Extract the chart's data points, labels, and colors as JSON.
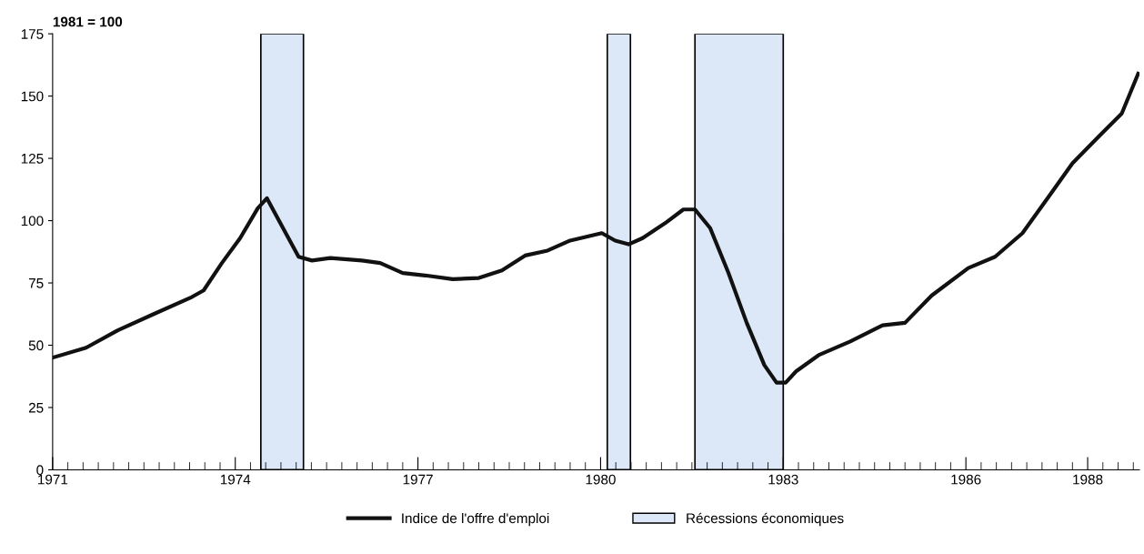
{
  "chart_data": {
    "type": "line",
    "ylabel": "1981 = 100",
    "series": [
      {
        "name": "Indice de l'offre d'emploi",
        "color": "#111111",
        "x": [
          1971.0,
          1971.55,
          1972.07,
          1972.66,
          1973.26,
          1973.48,
          1973.78,
          1974.08,
          1974.37,
          1974.52,
          1974.74,
          1975.04,
          1975.26,
          1975.56,
          1976.08,
          1976.38,
          1976.75,
          1977.12,
          1977.57,
          1978.0,
          1978.38,
          1978.76,
          1979.13,
          1979.5,
          1980.02,
          1980.24,
          1980.46,
          1980.69,
          1981.06,
          1981.36,
          1981.55,
          1981.8,
          1982.1,
          1982.4,
          1982.69,
          1982.89,
          1983.04,
          1983.21,
          1983.58,
          1984.1,
          1984.63,
          1985.0,
          1985.44,
          1986.04,
          1986.48,
          1986.93,
          1987.37,
          1987.75,
          1988.19,
          1988.56,
          1988.83
        ],
        "values": [
          45,
          49,
          56,
          62.5,
          69,
          72,
          83,
          93,
          105,
          109,
          99,
          85.5,
          84,
          85,
          84,
          83,
          79,
          78,
          76.5,
          77,
          80,
          86,
          88,
          92,
          95,
          92,
          90.5,
          93,
          99,
          104.5,
          104.5,
          97,
          79,
          59,
          42,
          35,
          35,
          39.5,
          46,
          51.5,
          58,
          59,
          70,
          81,
          85.5,
          95,
          110,
          123,
          134,
          143,
          159
        ]
      }
    ],
    "bands": [
      {
        "axis": "x",
        "from": 1974.42,
        "to": 1975.12,
        "label": "Récessions économiques",
        "color": "#dce8f8"
      },
      {
        "axis": "x",
        "from": 1980.11,
        "to": 1980.49,
        "color": "#dce8f8"
      },
      {
        "axis": "x",
        "from": 1981.55,
        "to": 1983.0,
        "color": "#dce8f8"
      }
    ],
    "xlim": [
      1971,
      1988.85
    ],
    "xticks": [
      1971,
      1974,
      1977,
      1980,
      1983,
      1986,
      1988
    ],
    "ylim": [
      0,
      175
    ],
    "yticks": [
      0,
      25,
      50,
      75,
      100,
      125,
      150,
      175
    ],
    "grid": false,
    "legend": "bottom",
    "line_style": "solid",
    "marker": "none"
  }
}
